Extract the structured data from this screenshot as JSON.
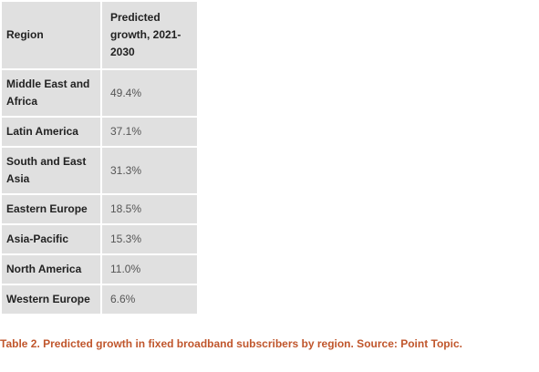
{
  "table": {
    "header": [
      "Region",
      "Predicted growth, 2021-2030"
    ],
    "rows": [
      [
        "Middle East and Africa",
        "49.4%"
      ],
      [
        "Latin America",
        "37.1%"
      ],
      [
        "South and East Asia",
        "31.3%"
      ],
      [
        "Eastern Europe",
        "18.5%"
      ],
      [
        "Asia-Pacific",
        "15.3%"
      ],
      [
        "North America",
        "11.0%"
      ],
      [
        "Western Europe",
        "6.6%"
      ]
    ]
  },
  "caption": "Table 2. Predicted growth in fixed broadband subscribers by region. Source: Point Topic."
}
